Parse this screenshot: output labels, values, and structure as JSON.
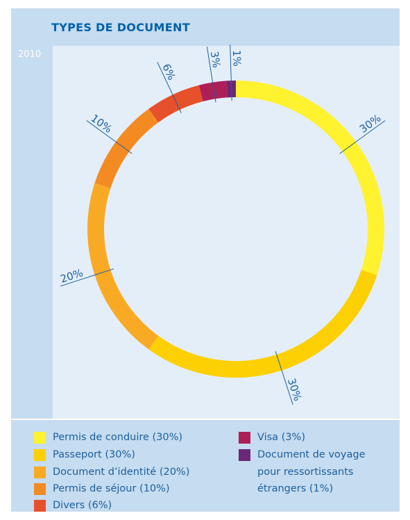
{
  "header": {
    "title": "TYPES DE DOCUMENT",
    "year": "2010"
  },
  "chart_data": {
    "type": "pie",
    "style": "donut",
    "segments": [
      {
        "label": "Permis de conduire",
        "value": 30,
        "color": "#fff22e",
        "data_label": "30%"
      },
      {
        "label": "Passeport",
        "value": 30,
        "color": "#fcd003",
        "data_label": "30%"
      },
      {
        "label": "Document d’identité",
        "value": 20,
        "color": "#f9aa25",
        "data_label": "20%"
      },
      {
        "label": "Permis de séjour",
        "value": 10,
        "color": "#f48b22",
        "data_label": "10%"
      },
      {
        "label": "Divers",
        "value": 6,
        "color": "#e6502a",
        "data_label": "6%"
      },
      {
        "label": "Visa",
        "value": 3,
        "color": "#ad1f57",
        "data_label": "3%"
      },
      {
        "label": "Document de voyage pour ressortissants étrangers",
        "value": 1,
        "color": "#6b2876",
        "data_label": "1%"
      }
    ],
    "legend": "bottom"
  },
  "legend": {
    "items": [
      {
        "text": "Permis de conduire (30%)",
        "color": "#fff22e"
      },
      {
        "text": "Passeport (30%)",
        "color": "#fcd003"
      },
      {
        "text": "Document d’identité (20%)",
        "color": "#f9aa25"
      },
      {
        "text": "Permis de séjour (10%)",
        "color": "#f48b22"
      },
      {
        "text": "Divers (6%)",
        "color": "#e6502a"
      },
      {
        "text": "Visa (3%)",
        "color": "#ad1f57"
      },
      {
        "text": "Document de voyage",
        "color": "#6b2876"
      },
      {
        "text": "pour ressortissants",
        "color": null
      },
      {
        "text": "étrangers (1%)",
        "color": null
      }
    ]
  },
  "colors": {
    "background": "#c6dcf0",
    "chart_area": "#e4eef9",
    "title": "#0062a8",
    "labels": "#1b5f9c"
  }
}
